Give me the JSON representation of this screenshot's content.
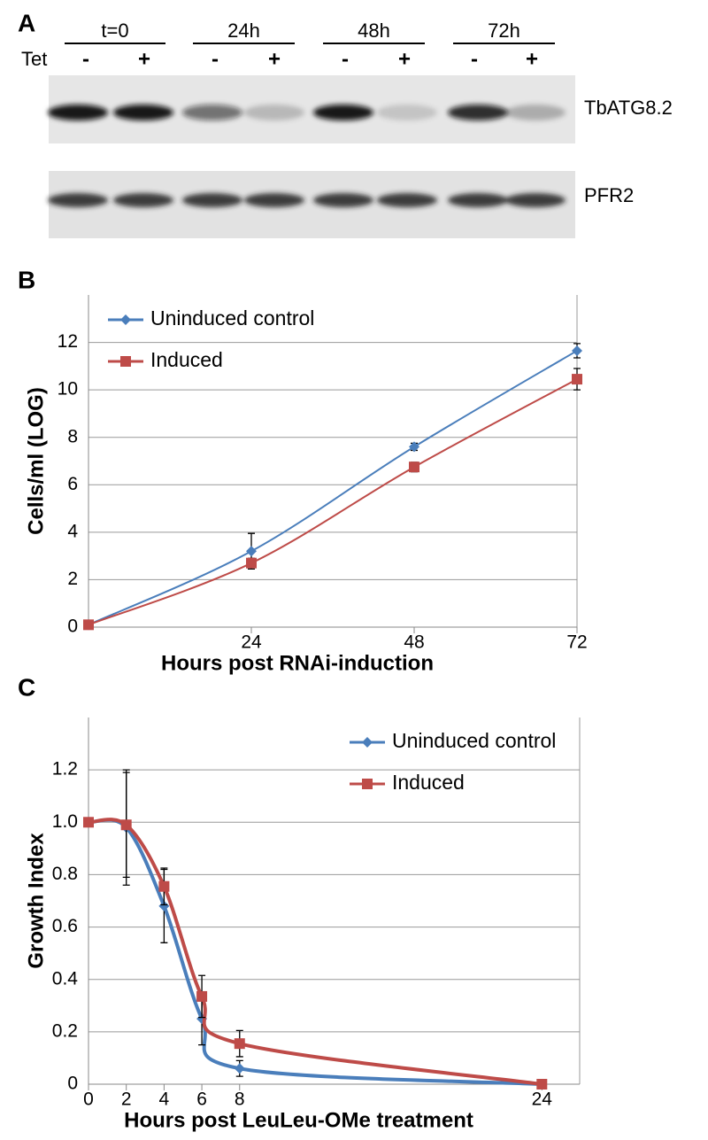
{
  "blot": {
    "label": "A",
    "timepoints": [
      "t=0",
      "24h",
      "48h",
      "72h"
    ],
    "treatment": "Tet",
    "signs": [
      "-",
      "+",
      "-",
      "+",
      "-",
      "+",
      "-",
      "+"
    ],
    "proteins": [
      "TbATG8.2",
      "PFR2"
    ]
  },
  "chart_data": [
    {
      "type": "line",
      "panel": "B",
      "xlabel": "Hours post RNAi-induction",
      "ylabel": "Cells/ml (LOG)",
      "x": [
        0,
        24,
        48,
        72
      ],
      "xlim": [
        0,
        72
      ],
      "xticks": [
        24,
        48,
        72
      ],
      "ylim": [
        0,
        14
      ],
      "yticks": [
        0,
        2,
        4,
        6,
        8,
        10,
        12
      ],
      "grid": true,
      "legend": "upper left",
      "smooth": true,
      "series": [
        {
          "name": "Uninduced control",
          "color": "#4a7ebb",
          "marker": "diamond",
          "values": [
            0.1,
            3.2,
            7.6,
            11.65
          ],
          "errors": [
            0,
            0.75,
            0.15,
            0.3
          ]
        },
        {
          "name": "Induced",
          "color": "#be4b48",
          "marker": "square",
          "values": [
            0.1,
            2.7,
            6.75,
            10.45
          ],
          "errors": [
            0,
            0.2,
            0.2,
            0.45
          ]
        }
      ]
    },
    {
      "type": "line",
      "panel": "C",
      "xlabel": "Hours post LeuLeu-OMe treatment",
      "ylabel": "Growth Index",
      "x": [
        0,
        2,
        4,
        6,
        8,
        24
      ],
      "xlim": [
        0,
        26
      ],
      "xticks": [
        0,
        2,
        4,
        6,
        8,
        24
      ],
      "ylim": [
        0,
        1.4
      ],
      "yticks": [
        0,
        0.2,
        0.4,
        0.6,
        0.8,
        {
          "value": 1,
          "label": "1.0"
        },
        1.2
      ],
      "grid": true,
      "legend": "upper right",
      "smooth": true,
      "series": [
        {
          "name": "Uninduced control",
          "color": "#4a7ebb",
          "marker": "diamond",
          "values": [
            1.0,
            0.98,
            0.68,
            0.25,
            0.06,
            0
          ],
          "errors": [
            0,
            0.22,
            0.14,
            0.1,
            0.03,
            0
          ]
        },
        {
          "name": "Induced",
          "color": "#be4b48",
          "marker": "square",
          "values": [
            1.0,
            0.99,
            0.755,
            0.335,
            0.155,
            0
          ],
          "errors": [
            0,
            0.2,
            0.07,
            0.08,
            0.05,
            0
          ]
        }
      ]
    }
  ]
}
